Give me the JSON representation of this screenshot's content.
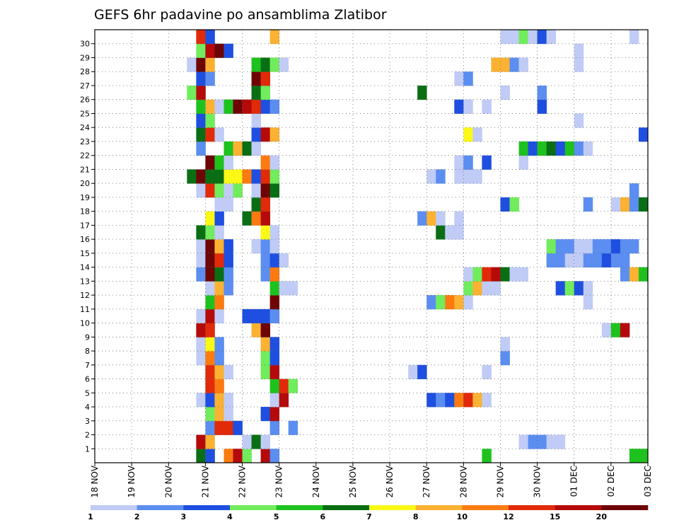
{
  "chart_data": {
    "type": "heatmap",
    "title": "GEFS 6hr padavine po ansamblima Zlatibor",
    "xlabel": "",
    "ylabel": "",
    "x_tick_labels": [
      "18 NOV",
      "19 NOV",
      "20 NOV",
      "21 NOV",
      "22 NOV",
      "23 NOV",
      "24 NOV",
      "25 NOV",
      "26 NOV",
      "27 NOV",
      "28 NOV",
      "29 NOV",
      "30 NOV",
      "01 DEC",
      "02 DEC",
      "03 DEC"
    ],
    "y_tick_labels": [
      "1",
      "2",
      "3",
      "4",
      "5",
      "6",
      "7",
      "8",
      "9",
      "10",
      "11",
      "12",
      "13",
      "14",
      "15",
      "16",
      "17",
      "18",
      "19",
      "20",
      "21",
      "22",
      "23",
      "24",
      "25",
      "26",
      "27",
      "28",
      "29",
      "30"
    ],
    "time_steps_per_day": 4,
    "n_time_steps": 60,
    "levels": [
      1,
      2,
      3,
      4,
      5,
      6,
      7,
      8,
      10,
      12,
      15,
      20
    ],
    "colors": [
      "#c0ccf6",
      "#5b8ef0",
      "#1e4fe0",
      "#71ec5c",
      "#1ec21e",
      "#0a6e14",
      "#fbf816",
      "#fbb132",
      "#fb7b10",
      "#e02a0a",
      "#b50a0a",
      "#6e0505"
    ],
    "colorbar_labels": [
      "1",
      "2",
      "3",
      "4",
      "5",
      "6",
      "7",
      "8",
      "10",
      "12",
      "15",
      "20"
    ],
    "members": [
      {
        "member": 0,
        "cells": [
          [
            11,
            6
          ],
          [
            12,
            3
          ],
          [
            14,
            9
          ],
          [
            15,
            11
          ],
          [
            16,
            4
          ],
          [
            18,
            11
          ],
          [
            19,
            2
          ],
          [
            42,
            5
          ],
          [
            58,
            5
          ],
          [
            59,
            5
          ]
        ]
      },
      {
        "member": 1,
        "cells": [
          [
            11,
            11
          ],
          [
            12,
            8
          ],
          [
            16,
            1
          ],
          [
            17,
            6
          ],
          [
            18,
            1
          ],
          [
            46,
            1
          ],
          [
            47,
            2
          ],
          [
            48,
            2
          ],
          [
            49,
            1
          ],
          [
            50,
            1
          ]
        ]
      },
      {
        "member": 2,
        "cells": [
          [
            12,
            2
          ],
          [
            13,
            10
          ],
          [
            14,
            10
          ],
          [
            15,
            3
          ],
          [
            19,
            2
          ],
          [
            21,
            2
          ]
        ]
      },
      {
        "member": 3,
        "cells": [
          [
            12,
            4
          ],
          [
            13,
            8
          ],
          [
            14,
            1
          ],
          [
            18,
            3
          ],
          [
            19,
            11
          ]
        ]
      },
      {
        "member": 4,
        "cells": [
          [
            11,
            1
          ],
          [
            12,
            3
          ],
          [
            13,
            8
          ],
          [
            14,
            1
          ],
          [
            19,
            1
          ],
          [
            20,
            11
          ],
          [
            36,
            3
          ],
          [
            37,
            2
          ],
          [
            38,
            3
          ],
          [
            39,
            9
          ],
          [
            40,
            10
          ],
          [
            41,
            8
          ],
          [
            42,
            1
          ]
        ]
      },
      {
        "member": 5,
        "cells": [
          [
            12,
            10
          ],
          [
            13,
            9
          ],
          [
            19,
            5
          ],
          [
            20,
            10
          ],
          [
            21,
            4
          ]
        ]
      },
      {
        "member": 6,
        "cells": [
          [
            12,
            10
          ],
          [
            13,
            8
          ],
          [
            14,
            1
          ],
          [
            18,
            4
          ],
          [
            19,
            11
          ],
          [
            34,
            1
          ],
          [
            35,
            3
          ],
          [
            42,
            1
          ]
        ]
      },
      {
        "member": 7,
        "cells": [
          [
            11,
            1
          ],
          [
            12,
            9
          ],
          [
            13,
            2
          ],
          [
            18,
            4
          ],
          [
            19,
            3
          ],
          [
            44,
            2
          ]
        ]
      },
      {
        "member": 8,
        "cells": [
          [
            11,
            1
          ],
          [
            12,
            7
          ],
          [
            13,
            2
          ],
          [
            18,
            8
          ],
          [
            19,
            3
          ],
          [
            44,
            1
          ]
        ]
      },
      {
        "member": 9,
        "cells": [
          [
            11,
            11
          ],
          [
            12,
            10
          ],
          [
            17,
            8
          ],
          [
            18,
            12
          ],
          [
            55,
            1
          ],
          [
            56,
            5
          ],
          [
            57,
            11
          ]
        ]
      },
      {
        "member": 10,
        "cells": [
          [
            11,
            1
          ],
          [
            12,
            11
          ],
          [
            13,
            1
          ],
          [
            16,
            3
          ],
          [
            17,
            3
          ],
          [
            18,
            3
          ],
          [
            19,
            2
          ]
        ]
      },
      {
        "member": 11,
        "cells": [
          [
            12,
            5
          ],
          [
            13,
            9
          ],
          [
            19,
            12
          ],
          [
            36,
            2
          ],
          [
            37,
            4
          ],
          [
            38,
            9
          ],
          [
            39,
            8
          ],
          [
            40,
            1
          ],
          [
            53,
            1
          ]
        ]
      },
      {
        "member": 12,
        "cells": [
          [
            12,
            1
          ],
          [
            13,
            8
          ],
          [
            14,
            2
          ],
          [
            19,
            5
          ],
          [
            20,
            1
          ],
          [
            21,
            1
          ],
          [
            40,
            4
          ],
          [
            41,
            8
          ],
          [
            42,
            1
          ],
          [
            43,
            1
          ],
          [
            50,
            3
          ],
          [
            51,
            4
          ],
          [
            52,
            3
          ],
          [
            53,
            1
          ]
        ]
      },
      {
        "member": 13,
        "cells": [
          [
            11,
            2
          ],
          [
            12,
            12
          ],
          [
            13,
            6
          ],
          [
            14,
            2
          ],
          [
            18,
            2
          ],
          [
            19,
            9
          ],
          [
            40,
            1
          ],
          [
            41,
            4
          ],
          [
            42,
            10
          ],
          [
            43,
            11
          ],
          [
            44,
            6
          ],
          [
            45,
            1
          ],
          [
            46,
            1
          ],
          [
            57,
            2
          ],
          [
            58,
            8
          ],
          [
            59,
            5
          ]
        ]
      },
      {
        "member": 14,
        "cells": [
          [
            11,
            1
          ],
          [
            12,
            12
          ],
          [
            13,
            10
          ],
          [
            14,
            3
          ],
          [
            18,
            2
          ],
          [
            19,
            3
          ],
          [
            20,
            1
          ],
          [
            49,
            2
          ],
          [
            50,
            2
          ],
          [
            51,
            1
          ],
          [
            52,
            1
          ],
          [
            53,
            2
          ],
          [
            54,
            2
          ],
          [
            55,
            3
          ],
          [
            56,
            2
          ],
          [
            57,
            2
          ]
        ]
      },
      {
        "member": 15,
        "cells": [
          [
            11,
            1
          ],
          [
            12,
            12
          ],
          [
            13,
            8
          ],
          [
            14,
            3
          ],
          [
            17,
            1
          ],
          [
            18,
            2
          ],
          [
            19,
            1
          ],
          [
            49,
            4
          ],
          [
            50,
            2
          ],
          [
            51,
            2
          ],
          [
            52,
            1
          ],
          [
            53,
            1
          ],
          [
            54,
            2
          ],
          [
            55,
            2
          ],
          [
            56,
            3
          ],
          [
            57,
            2
          ],
          [
            58,
            2
          ]
        ]
      },
      {
        "member": 16,
        "cells": [
          [
            11,
            6
          ],
          [
            12,
            4
          ],
          [
            13,
            1
          ],
          [
            18,
            7
          ],
          [
            19,
            1
          ],
          [
            37,
            6
          ],
          [
            38,
            1
          ],
          [
            39,
            1
          ]
        ]
      },
      {
        "member": 17,
        "cells": [
          [
            12,
            7
          ],
          [
            13,
            3
          ],
          [
            16,
            6
          ],
          [
            17,
            9
          ],
          [
            18,
            11
          ],
          [
            35,
            2
          ],
          [
            36,
            8
          ],
          [
            37,
            1
          ],
          [
            39,
            1
          ]
        ]
      },
      {
        "member": 18,
        "cells": [
          [
            13,
            1
          ],
          [
            14,
            1
          ],
          [
            17,
            6
          ],
          [
            18,
            10
          ],
          [
            44,
            3
          ],
          [
            45,
            4
          ],
          [
            53,
            2
          ],
          [
            56,
            1
          ],
          [
            57,
            8
          ],
          [
            58,
            2
          ],
          [
            59,
            6
          ]
        ]
      },
      {
        "member": 19,
        "cells": [
          [
            11,
            1
          ],
          [
            12,
            10
          ],
          [
            13,
            4
          ],
          [
            14,
            1
          ],
          [
            15,
            4
          ],
          [
            17,
            1
          ],
          [
            18,
            12
          ],
          [
            19,
            6
          ],
          [
            58,
            2
          ]
        ]
      },
      {
        "member": 20,
        "cells": [
          [
            10,
            6
          ],
          [
            11,
            12
          ],
          [
            12,
            6
          ],
          [
            13,
            6
          ],
          [
            14,
            7
          ],
          [
            15,
            7
          ],
          [
            16,
            9
          ],
          [
            17,
            3
          ],
          [
            18,
            10
          ],
          [
            19,
            4
          ],
          [
            36,
            1
          ],
          [
            37,
            2
          ],
          [
            39,
            1
          ],
          [
            40,
            1
          ],
          [
            41,
            1
          ]
        ]
      },
      {
        "member": 21,
        "cells": [
          [
            12,
            12
          ],
          [
            13,
            5
          ],
          [
            14,
            1
          ],
          [
            18,
            9
          ],
          [
            19,
            1
          ],
          [
            39,
            1
          ],
          [
            40,
            2
          ],
          [
            42,
            3
          ],
          [
            46,
            1
          ]
        ]
      },
      {
        "member": 22,
        "cells": [
          [
            11,
            2
          ],
          [
            14,
            5
          ],
          [
            15,
            8
          ],
          [
            16,
            6
          ],
          [
            17,
            1
          ],
          [
            46,
            5
          ],
          [
            47,
            3
          ],
          [
            48,
            5
          ],
          [
            49,
            6
          ],
          [
            50,
            3
          ],
          [
            51,
            5
          ],
          [
            52,
            2
          ],
          [
            53,
            1
          ]
        ]
      },
      {
        "member": 23,
        "cells": [
          [
            11,
            6
          ],
          [
            12,
            10
          ],
          [
            13,
            1
          ],
          [
            17,
            3
          ],
          [
            18,
            11
          ],
          [
            19,
            8
          ],
          [
            40,
            7
          ],
          [
            41,
            1
          ],
          [
            59,
            3
          ]
        ]
      },
      {
        "member": 24,
        "cells": [
          [
            11,
            3
          ],
          [
            12,
            4
          ],
          [
            17,
            1
          ],
          [
            52,
            1
          ]
        ]
      },
      {
        "member": 25,
        "cells": [
          [
            11,
            5
          ],
          [
            12,
            8
          ],
          [
            13,
            1
          ],
          [
            14,
            5
          ],
          [
            15,
            12
          ],
          [
            16,
            11
          ],
          [
            17,
            10
          ],
          [
            18,
            3
          ],
          [
            19,
            2
          ],
          [
            39,
            3
          ],
          [
            40,
            1
          ],
          [
            42,
            1
          ],
          [
            48,
            3
          ]
        ]
      },
      {
        "member": 26,
        "cells": [
          [
            10,
            4
          ],
          [
            11,
            11
          ],
          [
            17,
            6
          ],
          [
            18,
            4
          ],
          [
            35,
            6
          ],
          [
            44,
            1
          ],
          [
            48,
            2
          ]
        ]
      },
      {
        "member": 27,
        "cells": [
          [
            11,
            3
          ],
          [
            12,
            2
          ],
          [
            17,
            12
          ],
          [
            18,
            10
          ],
          [
            39,
            1
          ],
          [
            40,
            2
          ]
        ]
      },
      {
        "member": 28,
        "cells": [
          [
            10,
            1
          ],
          [
            11,
            12
          ],
          [
            12,
            8
          ],
          [
            17,
            5
          ],
          [
            18,
            6
          ],
          [
            19,
            4
          ],
          [
            20,
            1
          ],
          [
            43,
            8
          ],
          [
            44,
            8
          ],
          [
            45,
            2
          ],
          [
            46,
            1
          ],
          [
            52,
            1
          ]
        ]
      },
      {
        "member": 29,
        "cells": [
          [
            11,
            4
          ],
          [
            12,
            11
          ],
          [
            13,
            12
          ],
          [
            14,
            3
          ],
          [
            52,
            1
          ]
        ]
      },
      {
        "member": 30,
        "cells": [
          [
            11,
            10
          ],
          [
            12,
            3
          ],
          [
            19,
            8
          ],
          [
            44,
            1
          ],
          [
            45,
            1
          ],
          [
            46,
            4
          ],
          [
            47,
            1
          ],
          [
            48,
            3
          ],
          [
            49,
            1
          ],
          [
            58,
            1
          ]
        ]
      }
    ]
  }
}
